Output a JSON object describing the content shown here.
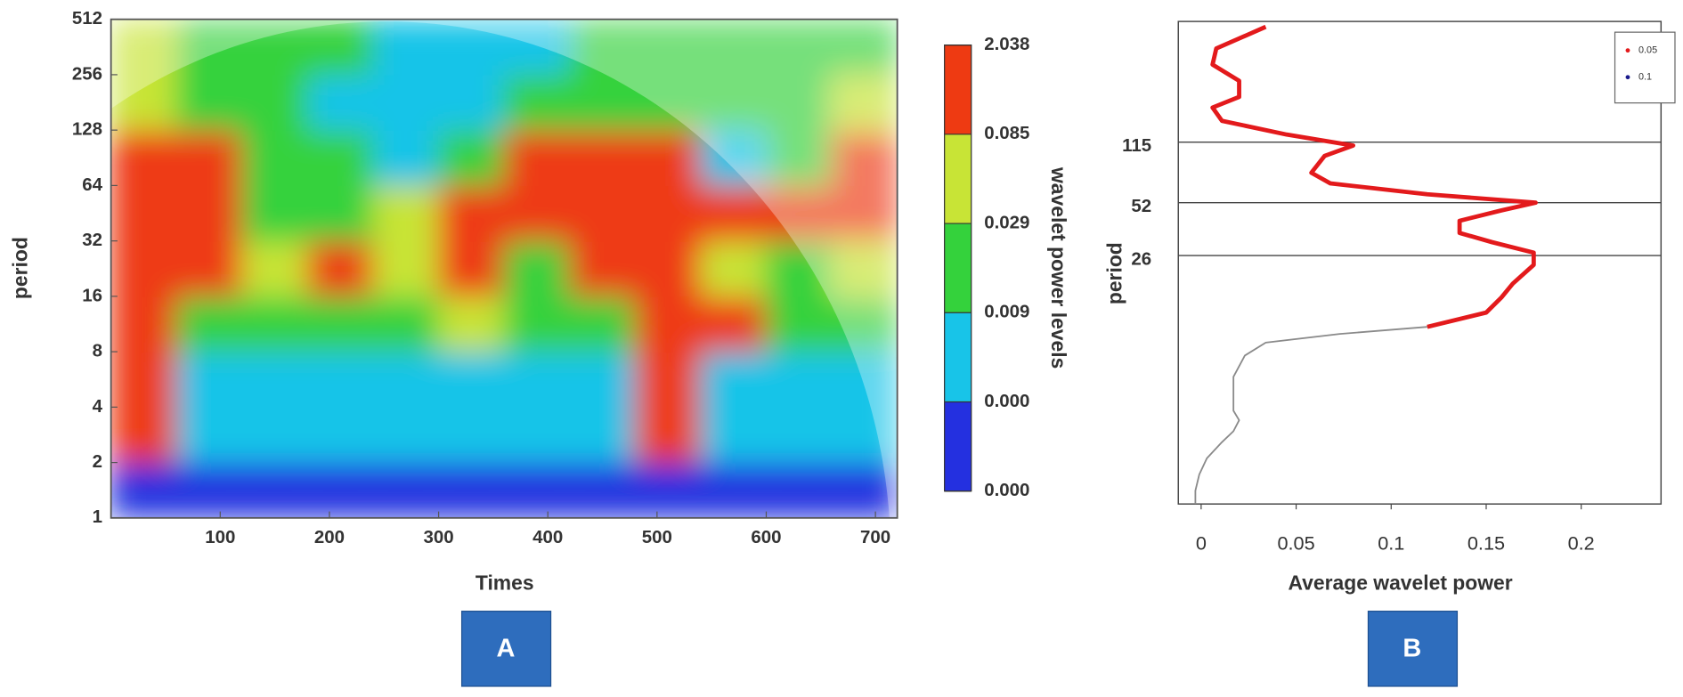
{
  "chart_data": [
    {
      "type": "heatmap",
      "xlabel": "Times",
      "ylabel": "period",
      "panel_label": "A",
      "xlim": [
        0,
        720
      ],
      "ylim": [
        1,
        512
      ],
      "log_base_y": 2,
      "xticks": [
        100,
        200,
        300,
        400,
        500,
        600,
        700
      ],
      "yticks": [
        1,
        2,
        4,
        8,
        16,
        32,
        64,
        128,
        256,
        512
      ],
      "x_edges": [
        0,
        60,
        120,
        180,
        240,
        300,
        360,
        420,
        480,
        540,
        600,
        660,
        720
      ],
      "y_edges": [
        1,
        2,
        4,
        8,
        16,
        32,
        64,
        128,
        256,
        512
      ],
      "z": [
        [
          0.0002,
          0.0002,
          0.0002,
          0.0002,
          0.0002,
          0.0002,
          0.0002,
          0.0002,
          0.0002,
          0.0002,
          0.0002,
          0.0002
        ],
        [
          0.1,
          0.003,
          0.002,
          0.003,
          0.002,
          0.003,
          0.002,
          0.003,
          0.15,
          0.002,
          0.003,
          0.002
        ],
        [
          0.2,
          0.002,
          0.003,
          0.001,
          0.003,
          0.002,
          0.003,
          0.002,
          0.1,
          0.002,
          0.003,
          0.002
        ],
        [
          0.5,
          0.015,
          0.01,
          0.02,
          0.015,
          0.05,
          0.02,
          0.01,
          0.3,
          0.2,
          0.01,
          0.015
        ],
        [
          0.6,
          0.3,
          0.05,
          0.2,
          0.05,
          0.1,
          0.02,
          0.5,
          0.6,
          0.04,
          0.02,
          0.05
        ],
        [
          0.8,
          0.7,
          0.015,
          0.01,
          0.03,
          0.2,
          0.1,
          0.8,
          0.9,
          0.7,
          0.5,
          0.2
        ],
        [
          0.4,
          0.3,
          0.02,
          0.01,
          0.005,
          0.02,
          0.1,
          0.3,
          0.2,
          0.005,
          0.02,
          0.1
        ],
        [
          0.05,
          0.02,
          0.01,
          0.005,
          0.001,
          0.003,
          0.01,
          0.02,
          0.015,
          0.01,
          0.02,
          0.03
        ],
        [
          0.03,
          0.02,
          0.015,
          0.01,
          0.005,
          0.002,
          0.003,
          0.01,
          0.015,
          0.02,
          0.015,
          0.02
        ]
      ],
      "colorbar": {
        "label": "wavelet power levels",
        "ticks": [
          {
            "value": 0.0001,
            "label": "0.000"
          },
          {
            "value": 0.0004,
            "label": "0.000"
          },
          0.009,
          0.029,
          0.085,
          2.038
        ],
        "colors": [
          "#2430e0",
          "#18c4e8",
          "#34d23c",
          "#c8e436",
          "#ee3a12"
        ]
      }
    },
    {
      "type": "line",
      "xlabel": "Average wavelet power",
      "ylabel": "period",
      "panel_label": "B",
      "xlim": [
        -0.012,
        0.242
      ],
      "ylim": [
        1,
        560
      ],
      "log_base_y": 2,
      "xticks": [
        0,
        0.05,
        0.1,
        0.15,
        0.2
      ],
      "yticks": [
        26,
        52,
        115
      ],
      "grid": true,
      "legend": "upper right",
      "series": [
        {
          "name": "0.05",
          "color": "#e31a1c",
          "power": [
            0.034,
            0.008,
            0.006,
            0.02,
            0.02,
            0.006,
            0.011,
            0.045,
            0.08,
            0.065,
            0.058,
            0.068,
            0.119,
            0.176,
            0.158,
            0.136,
            0.136,
            0.153,
            0.175,
            0.175,
            0.164,
            0.158,
            0.15,
            0.119
          ],
          "period": [
            522,
            393,
            318,
            257,
            208,
            181,
            152,
            127,
            110,
            96,
            77,
            67,
            58,
            52,
            47,
            41,
            35,
            31,
            27,
            23,
            18,
            15,
            12.3,
            10.2
          ]
        },
        {
          "name": "0.1",
          "color": "#1a1a8c",
          "power": [],
          "period": []
        }
      ],
      "curve": {
        "color": "#8a8a8a",
        "power": [
          0.119,
          0.073,
          0.034,
          0.023,
          0.017,
          0.017,
          0.017,
          0.02,
          0.017,
          0.011,
          0.003,
          -0.001,
          -0.003,
          -0.003
        ],
        "period": [
          10.2,
          9.3,
          8.3,
          7.0,
          5.3,
          4.3,
          3.4,
          3.0,
          2.6,
          2.25,
          1.82,
          1.47,
          1.19,
          1
        ]
      }
    }
  ]
}
